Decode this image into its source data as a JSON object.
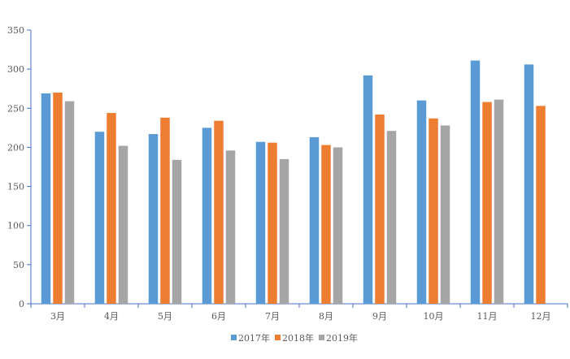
{
  "chart_data": {
    "type": "bar",
    "title": "",
    "xlabel": "",
    "ylabel": "",
    "categories": [
      "3月",
      "4月",
      "5月",
      "6月",
      "7月",
      "8月",
      "9月",
      "10月",
      "11月",
      "12月"
    ],
    "series": [
      {
        "name": "2017年",
        "color": "#5B9BD5",
        "values": [
          269,
          220,
          217,
          225,
          207,
          213,
          292,
          260,
          311,
          306
        ]
      },
      {
        "name": "2018年",
        "color": "#ED7D31",
        "values": [
          270,
          244,
          238,
          234,
          206,
          203,
          242,
          237,
          258,
          253
        ]
      },
      {
        "name": "2019年",
        "color": "#A5A5A5",
        "values": [
          259,
          202,
          184,
          196,
          185,
          200,
          221,
          228,
          261,
          null
        ]
      }
    ],
    "ylim": [
      0,
      350
    ],
    "yticks": [
      0,
      50,
      100,
      150,
      200,
      250,
      300,
      350
    ],
    "grid": false,
    "legend_position": "bottom"
  }
}
